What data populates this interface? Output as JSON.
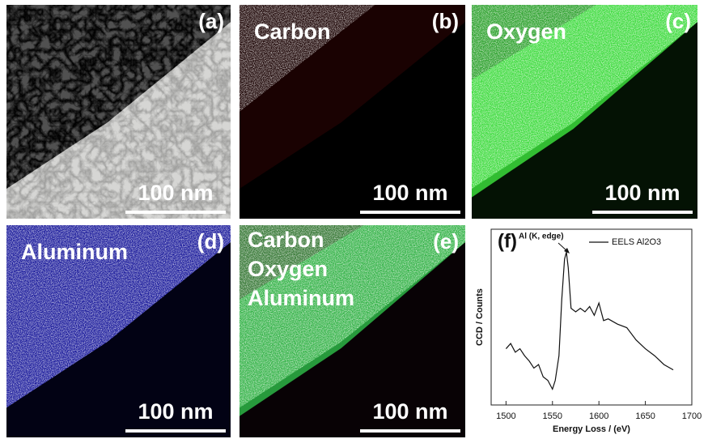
{
  "panels": [
    {
      "label": "(a)",
      "scale_bar": "100 nm"
    },
    {
      "label": "(b)",
      "element": "Carbon",
      "scale_bar": "100 nm"
    },
    {
      "label": "(c)",
      "element": "Oxygen",
      "scale_bar": "100 nm"
    },
    {
      "label": "(d)",
      "element": "Aluminum",
      "scale_bar": "100 nm"
    },
    {
      "label": "(e)",
      "elements": [
        "Carbon",
        "Oxygen",
        "Aluminum"
      ],
      "scale_bar": "100 nm"
    }
  ],
  "chart_data": {
    "type": "line",
    "panel_label": "(f)",
    "x_label": "Energy Loss / (eV)",
    "y_label": "CCD / Counts",
    "annotation": "Al (K, edge)",
    "x": [
      1500,
      1505,
      1510,
      1515,
      1520,
      1525,
      1530,
      1535,
      1540,
      1545,
      1550,
      1553,
      1557,
      1560,
      1563,
      1565,
      1567,
      1570,
      1575,
      1580,
      1585,
      1590,
      1595,
      1600,
      1605,
      1610,
      1620,
      1630,
      1640,
      1650,
      1660,
      1670,
      1680
    ],
    "series": [
      {
        "name": "EELS Al2O3",
        "color": "#111111",
        "values": [
          32,
          35,
          30,
          32,
          28,
          25,
          21,
          23,
          16,
          14,
          9,
          14,
          28,
          60,
          83,
          87,
          78,
          55,
          53,
          55,
          53,
          56,
          51,
          58,
          48,
          49,
          46,
          44,
          37,
          32,
          28,
          23,
          20
        ]
      }
    ],
    "xlim": [
      1484,
      1700
    ],
    "xticks": [
      1500,
      1550,
      1600,
      1650,
      1700
    ],
    "ylim": [
      0,
      100
    ]
  }
}
